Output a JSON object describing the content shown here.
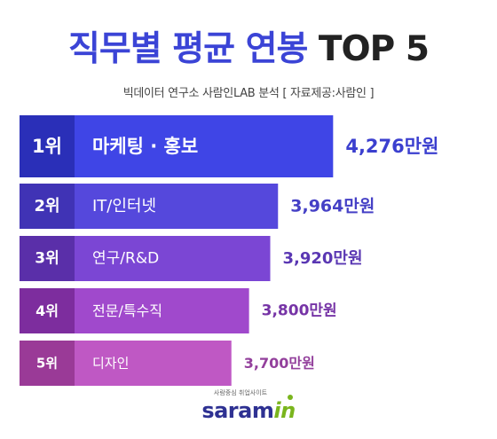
{
  "header": {
    "title_korean": "직무별 평균 연봉",
    "title_top": "TOP 5",
    "subtitle": "빅데이터 연구소 사람인LAB 분석 [ 자료제공:사람인 ]"
  },
  "chart_data": {
    "type": "bar",
    "orientation": "horizontal",
    "title": "직무별 평균 연봉 TOP 5",
    "subtitle": "빅데이터 연구소 사람인LAB 분석 [ 자료제공:사람인 ]",
    "ranks": [
      "1위",
      "2위",
      "3위",
      "4위",
      "5위"
    ],
    "categories": [
      "마케팅 · 홍보",
      "IT/인터넷",
      "연구/R&D",
      "전문/특수직",
      "디자인"
    ],
    "values": [
      4276,
      3964,
      3920,
      3800,
      3700
    ],
    "value_labels": [
      "4,276만원",
      "3,964만원",
      "3,920만원",
      "3,800만원",
      "3,700만원"
    ],
    "unit": "만원",
    "xlim": [
      2500,
      4400
    ],
    "grid": false,
    "legend": "none",
    "bar_colors": [
      "#3f45e6",
      "#5548dc",
      "#7b46d4",
      "#a049cc",
      "#bf58c4"
    ],
    "rank_colors": [
      "#2a2fb8",
      "#4033b5",
      "#5a2fa9",
      "#7d2d9e",
      "#9a3a97"
    ],
    "value_colors": [
      "#3b3fcf",
      "#4540c6",
      "#5a37b3",
      "#7634a6",
      "#93409c"
    ]
  },
  "logo": {
    "tagline": "사람중심 취업사이트",
    "word_main": "saram",
    "word_accent": "in"
  }
}
